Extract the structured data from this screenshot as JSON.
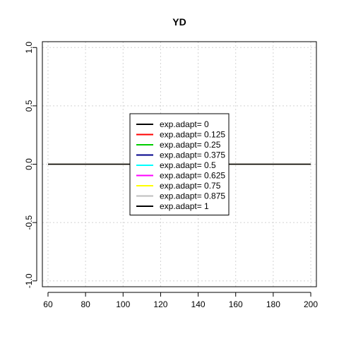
{
  "chart_data": {
    "type": "line",
    "title": "YD",
    "xlabel": "",
    "ylabel": "",
    "xlim": [
      57,
      203
    ],
    "ylim": [
      -1.05,
      1.05
    ],
    "xticks": [
      60,
      80,
      100,
      120,
      140,
      160,
      180,
      200
    ],
    "yticks": [
      -1.0,
      -0.5,
      0.0,
      0.5,
      1.0
    ],
    "xtick_labels": [
      "60",
      "80",
      "100",
      "120",
      "140",
      "160",
      "180",
      "200"
    ],
    "ytick_labels": [
      "-1.0",
      "-0.5",
      "0.0",
      "0.5",
      "1.0"
    ],
    "grid": true,
    "legend_position": "center",
    "series": [
      {
        "name": "exp.adapt= 0",
        "color": "#000000",
        "x": [
          60,
          80,
          100,
          120,
          140,
          160,
          180,
          200
        ],
        "y": [
          0,
          0,
          0,
          0,
          0,
          0,
          0,
          0
        ]
      },
      {
        "name": "exp.adapt= 0.125",
        "color": "#ff0000",
        "x": [
          60,
          80,
          100,
          120,
          140,
          160,
          180,
          200
        ],
        "y": [
          0,
          0,
          0,
          0,
          0,
          0,
          0,
          0
        ]
      },
      {
        "name": "exp.adapt= 0.25",
        "color": "#00cd00",
        "x": [
          60,
          80,
          100,
          120,
          140,
          160,
          180,
          200
        ],
        "y": [
          0,
          0,
          0,
          0,
          0,
          0,
          0,
          0
        ]
      },
      {
        "name": "exp.adapt= 0.375",
        "color": "#00008b",
        "x": [
          60,
          80,
          100,
          120,
          140,
          160,
          180,
          200
        ],
        "y": [
          0,
          0,
          0,
          0,
          0,
          0,
          0,
          0
        ]
      },
      {
        "name": "exp.adapt= 0.5",
        "color": "#00ffff",
        "x": [
          60,
          80,
          100,
          120,
          140,
          160,
          180,
          200
        ],
        "y": [
          0,
          0,
          0,
          0,
          0,
          0,
          0,
          0
        ]
      },
      {
        "name": "exp.adapt= 0.625",
        "color": "#ff00ff",
        "x": [
          60,
          80,
          100,
          120,
          140,
          160,
          180,
          200
        ],
        "y": [
          0,
          0,
          0,
          0,
          0,
          0,
          0,
          0
        ]
      },
      {
        "name": "exp.adapt= 0.75",
        "color": "#ffff00",
        "x": [
          60,
          80,
          100,
          120,
          140,
          160,
          180,
          200
        ],
        "y": [
          0,
          0,
          0,
          0,
          0,
          0,
          0,
          0
        ]
      },
      {
        "name": "exp.adapt= 0.875",
        "color": "#bebebe",
        "x": [
          60,
          80,
          100,
          120,
          140,
          160,
          180,
          200
        ],
        "y": [
          0,
          0,
          0,
          0,
          0,
          0,
          0,
          0
        ]
      },
      {
        "name": "exp.adapt= 1",
        "color": "#000000",
        "x": [
          60,
          80,
          100,
          120,
          140,
          160,
          180,
          200
        ],
        "y": [
          0,
          0,
          0,
          0,
          0,
          0,
          0,
          0
        ]
      }
    ]
  }
}
